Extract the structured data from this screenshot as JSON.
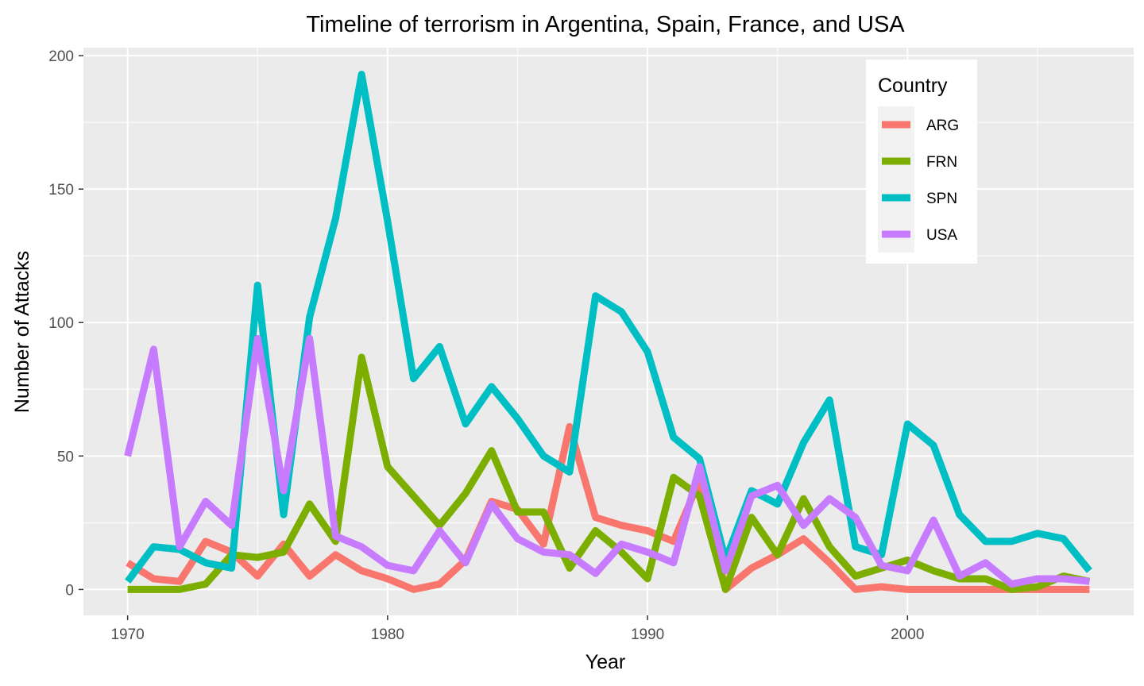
{
  "chart_data": {
    "type": "line",
    "title": "Timeline of terrorism in Argentina, Spain, France, and USA",
    "xlabel": "Year",
    "ylabel": "Number of Attacks",
    "xlim": [
      1968.3,
      2008.7
    ],
    "ylim": [
      -9.7,
      203
    ],
    "x_ticks": [
      1970,
      1980,
      1990,
      2000
    ],
    "y_ticks": [
      0,
      50,
      100,
      150,
      200
    ],
    "grid": true,
    "background": "#ebebeb",
    "legend": {
      "title": "Country",
      "placement": "top-right"
    },
    "series": [
      {
        "name": "ARG",
        "color": "#F8766D",
        "x": [
          1970,
          1971,
          1972,
          1973,
          1974,
          1975,
          1976,
          1977,
          1978,
          1979,
          1980,
          1981,
          1982,
          1983,
          1984,
          1985,
          1986,
          1987,
          1988,
          1989,
          1990,
          1991,
          1992,
          1993,
          1994,
          1995,
          1996,
          1997,
          1998,
          1999,
          2000,
          2001,
          2002,
          2003,
          2004,
          2005,
          2006,
          2007
        ],
        "values": [
          10,
          4,
          3,
          18,
          14,
          5,
          17,
          5,
          13,
          7,
          4,
          0,
          2,
          11,
          33,
          30,
          17,
          61,
          27,
          24,
          22,
          18,
          41,
          0,
          8,
          13,
          19,
          10,
          0,
          1,
          0,
          0,
          0,
          0,
          0,
          0,
          0,
          0
        ]
      },
      {
        "name": "FRN",
        "color": "#7CAE00",
        "x": [
          1970,
          1971,
          1972,
          1973,
          1974,
          1975,
          1976,
          1977,
          1978,
          1979,
          1980,
          1981,
          1982,
          1983,
          1984,
          1985,
          1986,
          1987,
          1988,
          1989,
          1990,
          1991,
          1992,
          1993,
          1994,
          1995,
          1996,
          1997,
          1998,
          1999,
          2000,
          2001,
          2002,
          2003,
          2004,
          2005,
          2006,
          2007
        ],
        "values": [
          0,
          0,
          0,
          2,
          13,
          12,
          14,
          32,
          18,
          87,
          46,
          35,
          24,
          36,
          52,
          29,
          29,
          8,
          22,
          14,
          4,
          42,
          35,
          0,
          27,
          13,
          34,
          16,
          5,
          8,
          11,
          7,
          4,
          4,
          0,
          1,
          5,
          3
        ]
      },
      {
        "name": "SPN",
        "color": "#00BFC4",
        "x": [
          1970,
          1971,
          1972,
          1973,
          1974,
          1975,
          1976,
          1977,
          1978,
          1979,
          1980,
          1981,
          1982,
          1983,
          1984,
          1985,
          1986,
          1987,
          1988,
          1989,
          1990,
          1991,
          1992,
          1993,
          1994,
          1995,
          1996,
          1997,
          1998,
          1999,
          2000,
          2001,
          2002,
          2003,
          2004,
          2005,
          2006,
          2007
        ],
        "values": [
          3,
          16,
          15,
          10,
          8,
          114,
          28,
          102,
          139,
          193,
          138,
          79,
          91,
          62,
          76,
          64,
          50,
          44,
          110,
          104,
          89,
          57,
          49,
          11,
          37,
          32,
          55,
          71,
          16,
          13,
          62,
          54,
          28,
          18,
          18,
          21,
          19,
          7
        ]
      },
      {
        "name": "USA",
        "color": "#C77CFF",
        "x": [
          1970,
          1971,
          1972,
          1973,
          1974,
          1975,
          1976,
          1977,
          1978,
          1979,
          1980,
          1981,
          1982,
          1983,
          1984,
          1985,
          1986,
          1987,
          1988,
          1989,
          1990,
          1991,
          1992,
          1993,
          1994,
          1995,
          1996,
          1997,
          1998,
          1999,
          2000,
          2001,
          2002,
          2003,
          2004,
          2005,
          2006,
          2007
        ],
        "values": [
          50,
          90,
          16,
          33,
          24,
          94,
          37,
          94,
          20,
          16,
          9,
          7,
          22,
          10,
          32,
          19,
          14,
          13,
          6,
          17,
          14,
          10,
          46,
          7,
          35,
          39,
          24,
          34,
          27,
          9,
          7,
          26,
          5,
          10,
          2,
          4,
          4,
          3
        ]
      }
    ]
  }
}
